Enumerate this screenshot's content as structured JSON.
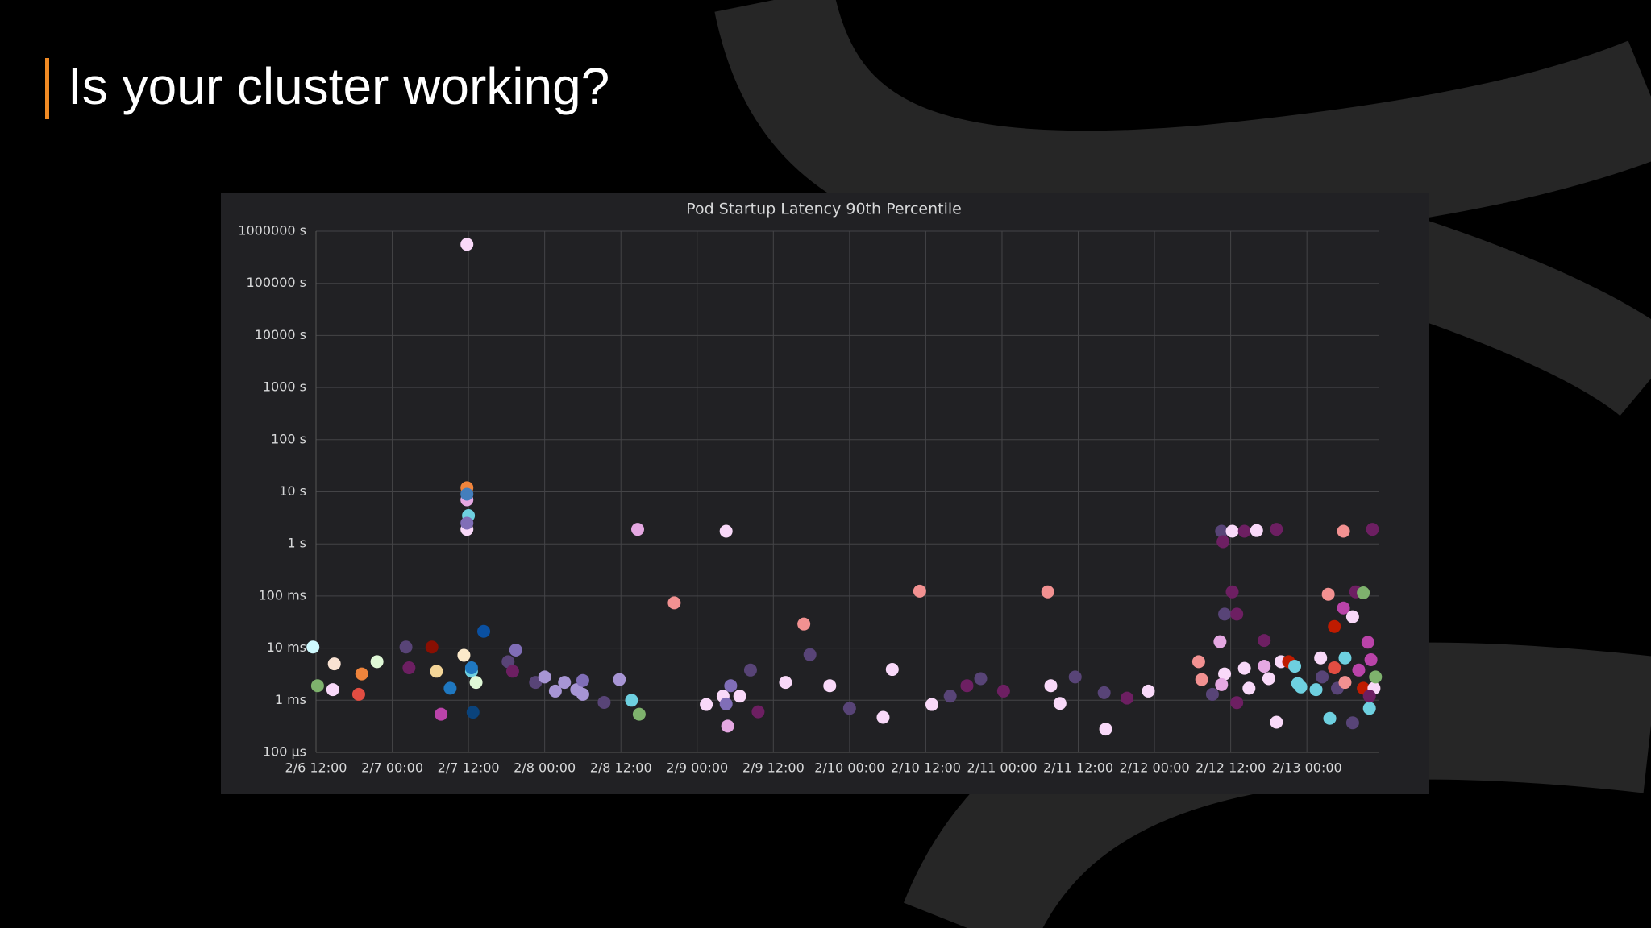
{
  "slide_title": "Is your cluster working?",
  "chart_data": {
    "type": "scatter",
    "title": "Pod Startup Latency 90th Percentile",
    "log_y": true,
    "grid": true,
    "xlim": [
      6.5,
      13.475
    ],
    "ylim": [
      0.0001,
      1000000
    ],
    "xticks": [
      {
        "value": 6.5,
        "label": "2/6 12:00"
      },
      {
        "value": 7,
        "label": "2/7 00:00"
      },
      {
        "value": 7.5,
        "label": "2/7 12:00"
      },
      {
        "value": 8,
        "label": "2/8 00:00"
      },
      {
        "value": 8.5,
        "label": "2/8 12:00"
      },
      {
        "value": 9,
        "label": "2/9 00:00"
      },
      {
        "value": 9.5,
        "label": "2/9 12:00"
      },
      {
        "value": 10,
        "label": "2/10 00:00"
      },
      {
        "value": 10.5,
        "label": "2/10 12:00"
      },
      {
        "value": 11,
        "label": "2/11 00:00"
      },
      {
        "value": 11.5,
        "label": "2/11 12:00"
      },
      {
        "value": 12,
        "label": "2/12 00:00"
      },
      {
        "value": 12.5,
        "label": "2/12 12:00"
      },
      {
        "value": 13,
        "label": "2/13 00:00"
      }
    ],
    "yticks": [
      {
        "value": 0.0001,
        "label": "100 µs"
      },
      {
        "value": 0.001,
        "label": "1 ms"
      },
      {
        "value": 0.01,
        "label": "10 ms"
      },
      {
        "value": 0.1,
        "label": "100 ms"
      },
      {
        "value": 1,
        "label": "1 s"
      },
      {
        "value": 10,
        "label": "10 s"
      },
      {
        "value": 100,
        "label": "100 s"
      },
      {
        "value": 1000,
        "label": "1000 s"
      },
      {
        "value": 10000,
        "label": "10000 s"
      },
      {
        "value": 100000,
        "label": "100000 s"
      },
      {
        "value": 1000000,
        "label": "1000000 s"
      }
    ],
    "x": [
      6.48,
      6.51,
      6.62,
      6.61,
      6.8,
      6.78,
      6.9,
      7.09,
      7.11,
      7.26,
      7.29,
      7.32,
      7.38,
      7.47,
      7.49,
      7.49,
      7.49,
      7.5,
      7.49,
      7.49,
      7.49,
      7.52,
      7.52,
      7.55,
      7.53,
      7.6,
      7.76,
      7.79,
      7.81,
      7.94,
      8.0,
      8.07,
      8.13,
      8.21,
      8.25,
      8.25,
      8.39,
      8.49,
      8.57,
      8.62,
      8.61,
      8.85,
      9.06,
      9.19,
      9.17,
      9.2,
      9.22,
      9.19,
      9.28,
      9.35,
      9.4,
      9.58,
      9.7,
      9.74,
      9.87,
      10.0,
      10.22,
      10.28,
      10.46,
      10.54,
      10.66,
      10.77,
      10.86,
      11.01,
      11.3,
      11.32,
      11.38,
      11.48,
      11.67,
      11.68,
      11.82,
      11.96,
      12.29,
      12.31,
      12.38,
      12.43,
      12.44,
      12.45,
      12.46,
      12.51,
      12.51,
      12.54,
      12.54,
      12.46,
      12.44,
      12.59,
      12.59,
      12.62,
      12.67,
      12.72,
      12.72,
      12.75,
      12.8,
      12.8,
      12.83,
      12.88,
      12.92,
      12.96,
      12.94,
      13.06,
      13.09,
      13.1,
      13.14,
      13.15,
      13.18,
      13.18,
      13.2,
      13.24,
      13.24,
      13.25,
      13.25,
      13.3,
      13.3,
      13.32,
      13.34,
      13.37,
      13.37,
      13.4,
      13.41,
      13.42,
      13.43,
      13.44,
      13.45,
      13.41
    ],
    "values": [
      0.0105,
      0.0019,
      0.005,
      0.0016,
      0.0032,
      0.0013,
      0.0055,
      0.0105,
      0.0042,
      0.0105,
      0.0036,
      0.00054,
      0.0017,
      0.0073,
      560000,
      12,
      7,
      3.5,
      1.9,
      9,
      2.5,
      0.0036,
      0.0042,
      0.0022,
      0.00059,
      0.021,
      0.0055,
      0.0036,
      0.0092,
      0.0022,
      0.0028,
      0.0015,
      0.0022,
      0.0016,
      0.0013,
      0.0024,
      0.00091,
      0.0025,
      0.001,
      0.00054,
      1.9,
      0.074,
      0.00083,
      1.75,
      0.0012,
      0.00032,
      0.0019,
      0.00085,
      0.0012,
      0.0038,
      0.0006,
      0.0022,
      0.029,
      0.0075,
      0.0019,
      0.0007,
      0.00047,
      0.0039,
      0.124,
      0.00083,
      0.0012,
      0.0019,
      0.0026,
      0.0015,
      0.12,
      0.0019,
      0.00087,
      0.0028,
      0.0014,
      0.00028,
      0.0011,
      0.0015,
      0.0055,
      0.0025,
      0.0013,
      0.0133,
      1.75,
      1.1,
      0.045,
      1.75,
      0.12,
      0.045,
      0.0009,
      0.0032,
      0.002,
      0.0041,
      1.75,
      0.0017,
      1.8,
      0.014,
      0.0045,
      0.0026,
      1.9,
      0.00038,
      0.0055,
      0.0055,
      0.0045,
      0.0018,
      0.0021,
      0.0016,
      0.0065,
      0.0028,
      0.108,
      0.00045,
      0.0042,
      0.026,
      0.0017,
      1.75,
      0.059,
      0.0065,
      0.0022,
      0.04,
      0.00037,
      0.12,
      0.0038,
      0.115,
      0.0017,
      0.013,
      0.0007,
      0.006,
      1.9,
      0.0017,
      0.0028,
      0.0012
    ],
    "point_colors": [
      "#cffaff",
      "#7eb26d",
      "#f9e2d2",
      "#f9d9f9",
      "#ef843c",
      "#e24d42",
      "#e0f9d7",
      "#584477",
      "#6d1f62",
      "#890f02",
      "#f4d598",
      "#ba43a9",
      "#1f78c1",
      "#fceaca",
      "#f9d9f9",
      "#ef843c",
      "#e5a8e2",
      "#6ed0e0",
      "#f9d9f9",
      "#447ebc",
      "#806eb7",
      "#6ed0e0",
      "#1f78c1",
      "#e0f9d7",
      "#0a437c",
      "#0a50a1",
      "#584477",
      "#6d1f62",
      "#806eb7",
      "#584477",
      "#a795d4",
      "#a795d4",
      "#a795d4",
      "#a795d4",
      "#a795d4",
      "#806eb7",
      "#584477",
      "#a795d4",
      "#6ed0e0",
      "#7eb26d",
      "#e5a8e2",
      "#f29191",
      "#f9d9f9",
      "#f9d9f9",
      "#f9d9f9",
      "#e5a8e2",
      "#806eb7",
      "#806eb7",
      "#f9d9f9",
      "#584477",
      "#6d1f62",
      "#f9d9f9",
      "#f29191",
      "#584477",
      "#f9d9f9",
      "#584477",
      "#f9d9f9",
      "#f9d9f9",
      "#f29191",
      "#f9d9f9",
      "#584477",
      "#6d1f62",
      "#584477",
      "#6d1f62",
      "#f29191",
      "#f9d9f9",
      "#f9d9f9",
      "#584477",
      "#584477",
      "#f9d9f9",
      "#6d1f62",
      "#f9d9f9",
      "#f29191",
      "#f29191",
      "#584477",
      "#e5a8e2",
      "#584477",
      "#6d1f62",
      "#584477",
      "#f9d9f9",
      "#6d1f62",
      "#6d1f62",
      "#6d1f62",
      "#f9d9f9",
      "#e5a8e2",
      "#f9d9f9",
      "#6d1f62",
      "#f9d9f9",
      "#f9d9f9",
      "#6d1f62",
      "#e5a8e2",
      "#f9d9f9",
      "#6d1f62",
      "#f9d9f9",
      "#f9d9f9",
      "#bf1b00",
      "#6ed0e0",
      "#6ed0e0",
      "#6ed0e0",
      "#6ed0e0",
      "#f9d9f9",
      "#584477",
      "#f29191",
      "#6ed0e0",
      "#e24d42",
      "#bf1b00",
      "#584477",
      "#f29191",
      "#ba43a9",
      "#6ed0e0",
      "#f29191",
      "#f9d9f9",
      "#584477",
      "#6d1f62",
      "#ba43a9",
      "#7eb26d",
      "#bf1b00",
      "#ba43a9",
      "#6ed0e0",
      "#ba43a9",
      "#6d1f62",
      "#f9d9f9",
      "#7eb26d",
      "#6d1f62"
    ]
  }
}
